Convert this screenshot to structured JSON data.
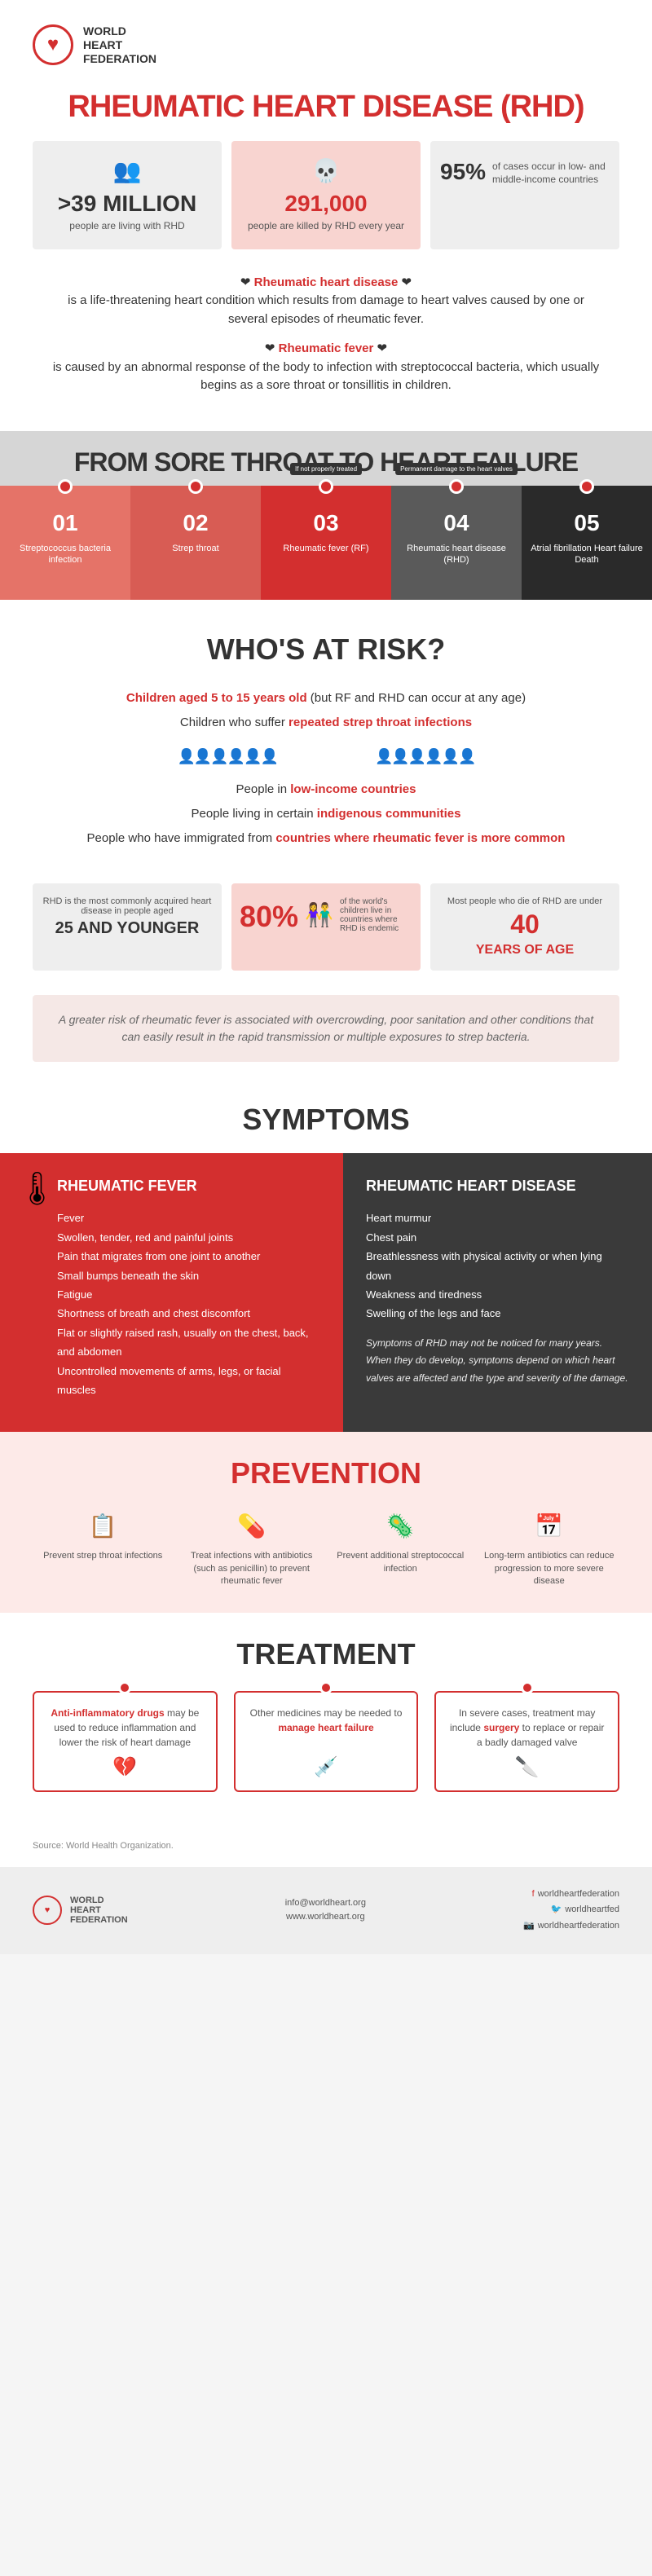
{
  "logo": {
    "brand": "WORLD\nHEART\nFEDERATION"
  },
  "title": "RHEUMATIC HEART DISEASE (RHD)",
  "stats": [
    {
      "icon": "👥",
      "num": ">39 MILLION",
      "desc": "people are living with RHD"
    },
    {
      "icon": "💀",
      "num": "291,000",
      "desc": "people are killed by RHD every year"
    },
    {
      "icon": "🌍",
      "num": "95%",
      "desc": "of cases occur in low- and middle-income countries"
    }
  ],
  "intro": {
    "p1a": "Rheumatic heart disease",
    "p1b": "is a life-threatening heart condition which results from damage to heart valves caused by one or several episodes of rheumatic fever.",
    "p2a": "Rheumatic fever",
    "p2b": "is caused by an abnormal response of the body to infection with streptococcal bacteria, which usually begins as a sore throat or tonsillitis in children."
  },
  "timeline": {
    "title": "FROM SORE THROAT TO HEART FAILURE",
    "steps": [
      {
        "n": "01",
        "label": "Streptococcus bacteria infection",
        "color": "#e57368",
        "note": ""
      },
      {
        "n": "02",
        "label": "Strep throat",
        "color": "#d85c54",
        "note": ""
      },
      {
        "n": "03",
        "label": "Rheumatic fever (RF)",
        "color": "#d32f2f",
        "note": "If not properly treated"
      },
      {
        "n": "04",
        "label": "Rheumatic heart disease (RHD)",
        "color": "#5a5a5a",
        "note": "Permanent damage to the heart valves"
      },
      {
        "n": "05",
        "label": "Atrial fibrillation Heart failure Death",
        "color": "#2a2a2a",
        "note": ""
      }
    ]
  },
  "who": {
    "title": "WHO'S AT RISK?",
    "l1a": "Children aged 5 to 15 years old",
    "l1b": " (but RF and RHD can occur at any age)",
    "l2a": "Children who suffer ",
    "l2b": "repeated strep throat infections",
    "l3a": "People in ",
    "l3b": "low-income countries",
    "l4a": "People living in certain ",
    "l4b": "indigenous communities",
    "l5a": "People who have immigrated from ",
    "l5b": "countries where rheumatic fever is more common"
  },
  "riskStats": {
    "b1a": "RHD is the most commonly acquired heart disease in people aged",
    "b1b": "25 AND YOUNGER",
    "b2a": "80%",
    "b2b": "of the world's children live in countries where RHD is endemic",
    "b3a": "Most people who die of RHD are under",
    "b3b": "40",
    "b3c": "YEARS OF AGE"
  },
  "note": "A greater risk of rheumatic fever is associated with overcrowding, poor sanitation and other conditions that can easily result in the rapid transmission or multiple exposures to strep bacteria.",
  "symptoms": {
    "title": "SYMPTOMS",
    "rf": {
      "title": "RHEUMATIC FEVER",
      "items": [
        "Fever",
        "Swollen, tender, red and painful joints",
        "Pain that migrates from one joint to another",
        "Small bumps beneath the skin",
        "Fatigue",
        "Shortness of breath and chest discomfort",
        "Flat or slightly raised rash, usually on the chest, back, and abdomen",
        "Uncontrolled movements of arms, legs, or facial muscles"
      ]
    },
    "rhd": {
      "title": "RHEUMATIC HEART DISEASE",
      "items": [
        "Heart murmur",
        "Chest pain",
        "Breathlessness with physical activity or when lying down",
        "Weakness and tiredness",
        "Swelling of the legs and face"
      ],
      "note": "Symptoms of RHD may not be noticed for many years. When they do develop, symptoms depend on which heart valves are affected and the type and severity of the damage."
    }
  },
  "prevention": {
    "title": "PREVENTION",
    "items": [
      {
        "icon": "📋",
        "text": "Prevent strep throat infections"
      },
      {
        "icon": "💊",
        "text": "Treat infections with antibiotics (such as penicillin) to prevent rheumatic fever"
      },
      {
        "icon": "🦠",
        "text": "Prevent additional streptococcal infection"
      },
      {
        "icon": "📅",
        "text": "Long-term antibiotics can reduce progression to more severe disease"
      }
    ]
  },
  "treatment": {
    "title": "TREATMENT",
    "boxes": [
      {
        "em1": "Anti-inflammatory drugs",
        "t1": " may be used to reduce inflammation and lower the risk of heart damage",
        "icon": "💔"
      },
      {
        "t0": "Other medicines may be needed to ",
        "em1": "manage heart failure",
        "icon": "💉"
      },
      {
        "t0": "In severe cases, treatment may include ",
        "em1": "surgery",
        "t1": " to replace or repair a badly damaged valve",
        "icon": "🔪"
      }
    ]
  },
  "source": "Source: World Health Organization.",
  "footer": {
    "email": "info@worldheart.org",
    "web": "www.worldheart.org",
    "social": [
      {
        "icon": "f",
        "handle": "worldheartfederation"
      },
      {
        "icon": "🐦",
        "handle": "worldheartfed"
      },
      {
        "icon": "📷",
        "handle": "worldheartfederation"
      }
    ]
  }
}
